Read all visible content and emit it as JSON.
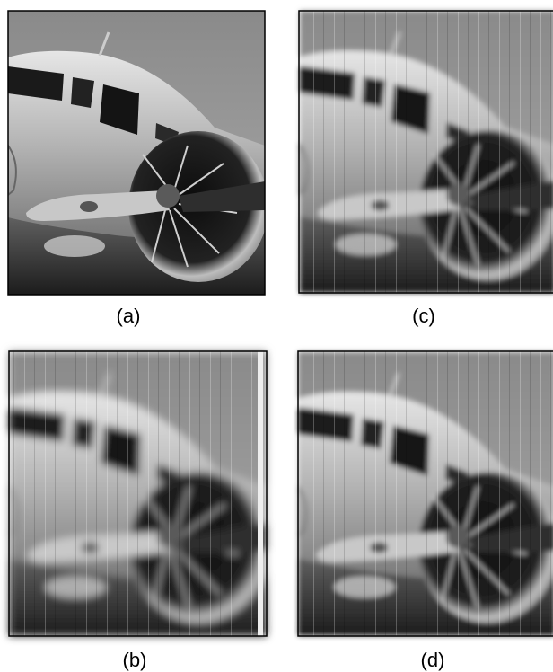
{
  "panels": [
    {
      "label": "(a)"
    },
    {
      "label": "(c)"
    },
    {
      "label": "(b)"
    },
    {
      "label": "(d)"
    }
  ]
}
